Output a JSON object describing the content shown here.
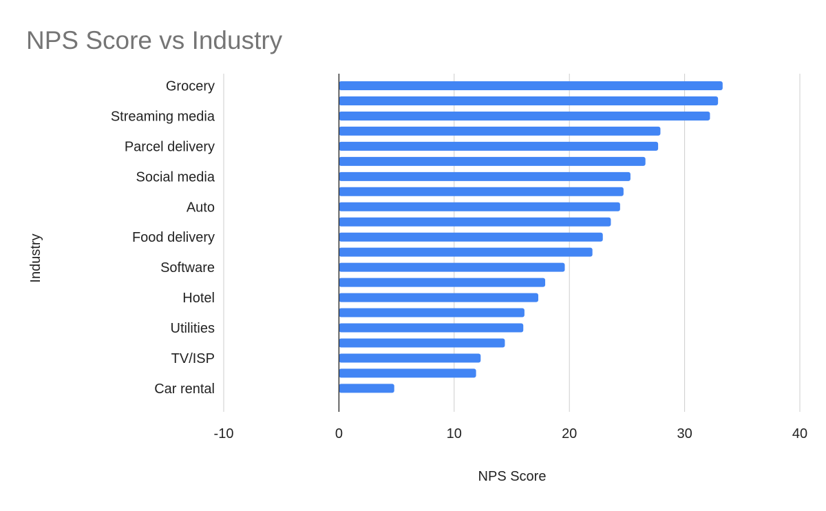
{
  "chart_data": {
    "type": "bar",
    "orientation": "horizontal",
    "title": "NPS Score vs Industry",
    "xlabel": "NPS Score",
    "ylabel": "Industry",
    "xlim": [
      -10,
      40
    ],
    "xticks": [
      -10,
      0,
      10,
      20,
      30,
      40
    ],
    "grid": true,
    "color": "#4285f4",
    "categories": [
      "Grocery",
      "",
      "Streaming media",
      "",
      "Parcel delivery",
      "",
      "Social media",
      "",
      "Auto",
      "",
      "Food delivery",
      "",
      "Software",
      "",
      "Hotel",
      "",
      "Utilities",
      "",
      "TV/ISP",
      "",
      "Car rental"
    ],
    "values": [
      33.3,
      32.9,
      32.2,
      27.9,
      27.7,
      26.6,
      25.3,
      24.7,
      24.4,
      23.6,
      22.9,
      22.0,
      19.6,
      17.9,
      17.3,
      16.1,
      16.0,
      14.4,
      12.3,
      11.9,
      4.8
    ]
  }
}
